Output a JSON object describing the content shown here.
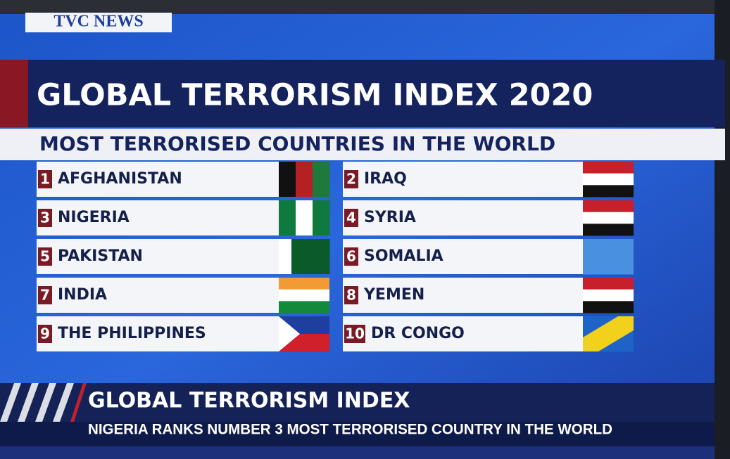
{
  "header": {
    "logo": "TVC NEWS",
    "title": "GLOBAL TERRORISM INDEX 2020",
    "subtitle": "MOST TERRORISED COUNTRIES IN THE WORLD"
  },
  "rankings": [
    {
      "rank": "1",
      "country": "AFGHANISTAN"
    },
    {
      "rank": "2",
      "country": "IRAQ"
    },
    {
      "rank": "3",
      "country": "NIGERIA"
    },
    {
      "rank": "4",
      "country": "SYRIA"
    },
    {
      "rank": "5",
      "country": "PAKISTAN"
    },
    {
      "rank": "6",
      "country": "SOMALIA"
    },
    {
      "rank": "7",
      "country": "INDIA"
    },
    {
      "rank": "8",
      "country": "YEMEN"
    },
    {
      "rank": "9",
      "country": "THE PHILIPPINES"
    },
    {
      "rank": "10",
      "country": "DR CONGO"
    }
  ],
  "ticker": {
    "headline": "GLOBAL TERRORISM INDEX",
    "subline": "NIGERIA RANKS NUMBER 3 MOST TERRORISED COUNTRY IN THE WORLD"
  }
}
